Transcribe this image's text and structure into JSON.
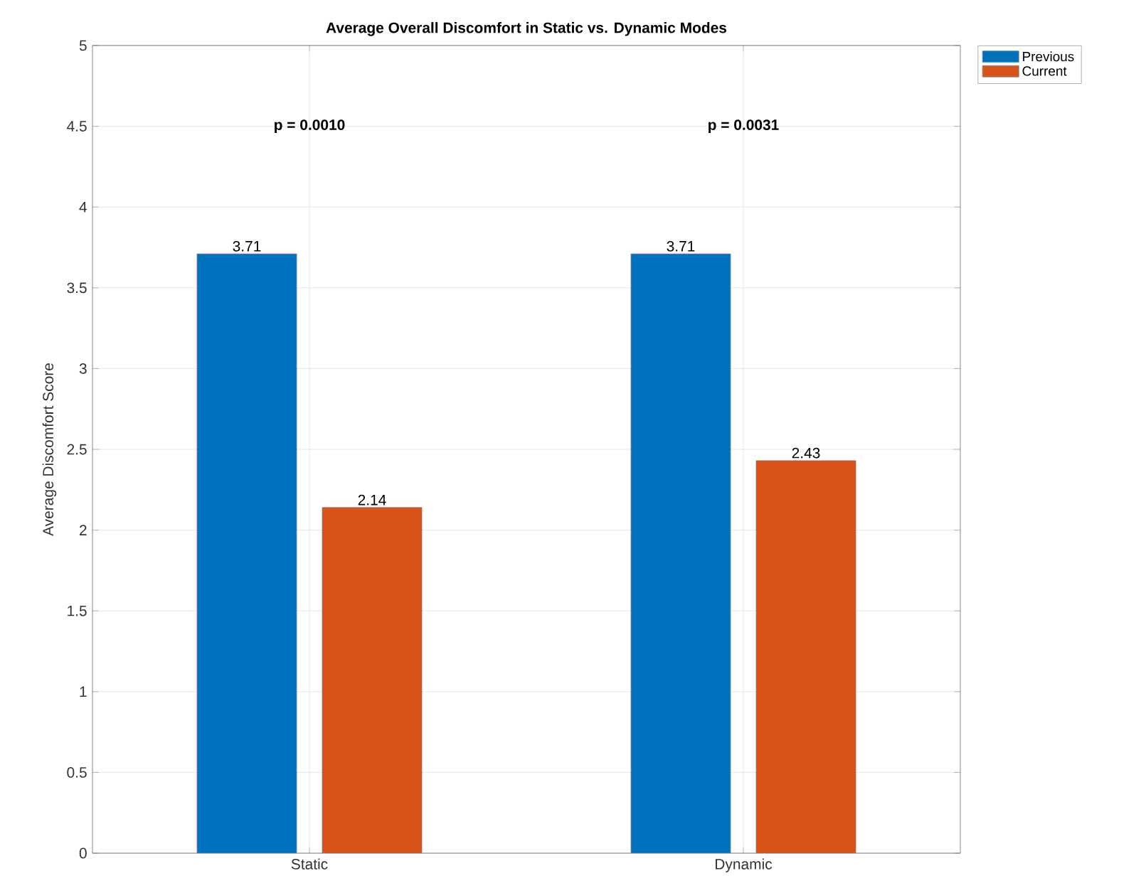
{
  "chart_data": {
    "type": "bar",
    "title": "Average Overall Discomfort in Static vs. Dynamic Modes",
    "ylabel": "Average Discomfort Score",
    "categories": [
      "Static",
      "Dynamic"
    ],
    "series": [
      {
        "name": "Previous",
        "color": "#0072bd",
        "values": [
          3.71,
          3.71
        ]
      },
      {
        "name": "Current",
        "color": "#d95319",
        "values": [
          2.14,
          2.43
        ]
      }
    ],
    "ylim": [
      0,
      5
    ],
    "yticks": [
      0,
      0.5,
      1,
      1.5,
      2,
      2.5,
      3,
      3.5,
      4,
      4.5,
      5
    ],
    "annotations": [
      "p = 0.0010",
      "p = 0.0031"
    ],
    "data_labels": true,
    "grid": true,
    "legend": "top right"
  }
}
